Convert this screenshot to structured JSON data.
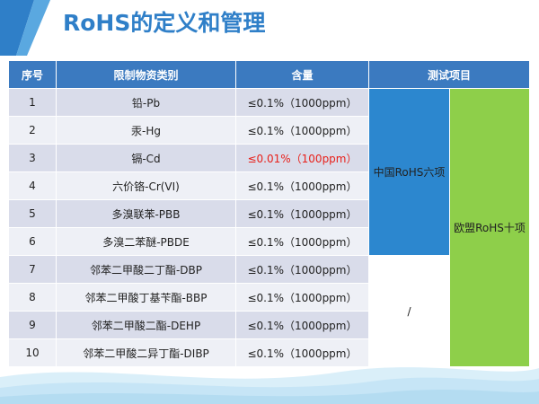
{
  "title": "RoHS的定义和管理",
  "table": {
    "headers": [
      "序号",
      "限制物资类别",
      "含量",
      "测试项目"
    ],
    "rows": [
      {
        "no": "1",
        "substance": "铅-Pb",
        "limit": "≤0.1%（1000ppm）",
        "highlight": false
      },
      {
        "no": "2",
        "substance": "汞-Hg",
        "limit": "≤0.1%（1000ppm）",
        "highlight": false
      },
      {
        "no": "3",
        "substance": "镉-Cd",
        "limit": "≤0.01%（100ppm）",
        "highlight": true
      },
      {
        "no": "4",
        "substance": "六价铬-Cr(VI)",
        "limit": "≤0.1%（1000ppm）",
        "highlight": false
      },
      {
        "no": "5",
        "substance": "多溴联苯-PBB",
        "limit": "≤0.1%（1000ppm）",
        "highlight": false
      },
      {
        "no": "6",
        "substance": "多溴二苯醚-PBDE",
        "limit": "≤0.1%（1000ppm）",
        "highlight": false
      },
      {
        "no": "7",
        "substance": "邻苯二甲酸二丁酯-DBP",
        "limit": "≤0.1%（1000ppm）",
        "highlight": false
      },
      {
        "no": "8",
        "substance": "邻苯二甲酸丁基苄酯-BBP",
        "limit": "≤0.1%（1000ppm）",
        "highlight": false
      },
      {
        "no": "9",
        "substance": "邻苯二甲酸二酯-DEHP",
        "limit": "≤0.1%（1000ppm）",
        "highlight": false
      },
      {
        "no": "10",
        "substance": "邻苯二甲酸二异丁酯-DIBP",
        "limit": "≤0.1%（1000ppm）",
        "highlight": false
      }
    ],
    "test_groups": {
      "china_rohs6": "中国RoHS六项",
      "eu_rohs10": "欧盟RoHS十项",
      "none": "/"
    }
  },
  "colors": {
    "title": "#2f7fc8",
    "header_bg": "#3b7ac0",
    "china_bg": "#2c87cf",
    "eu_bg": "#8ecf4a",
    "highlight_text": "#e8211b"
  }
}
